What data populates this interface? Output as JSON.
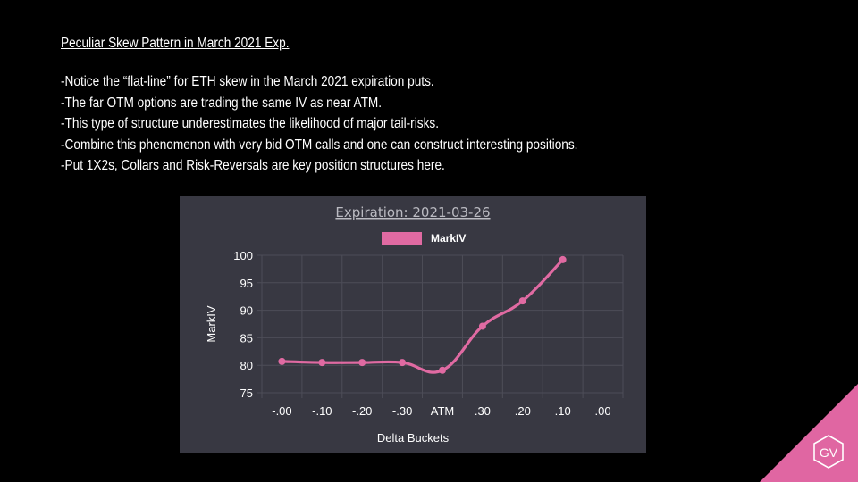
{
  "slide": {
    "title": "Peculiar Skew Pattern in March 2021 Exp.",
    "bullets": [
      "-Notice the “flat-line” for ETH skew in the March 2021 expiration puts.",
      "-The far OTM options are trading the same IV as near ATM.",
      "-This type of structure underestimates the likelihood of major tail-risks.",
      "-Combine this phenomenon with very bid OTM calls and one can construct interesting positions.",
      "-Put 1X2s, Collars and Risk-Reversals are key position structures here."
    ]
  },
  "logo": {
    "text": "GV",
    "color": "#e066a2"
  },
  "chart_data": {
    "type": "line",
    "title": "Expiration: 2021-03-26",
    "xlabel": "Delta Buckets",
    "ylabel": "MarkIV",
    "categories": [
      "-.00",
      "-.10",
      "-.20",
      "-.30",
      "ATM",
      ".30",
      ".20",
      ".10",
      ".00"
    ],
    "series": [
      {
        "name": "MarkIV",
        "values": [
          80.7,
          80.5,
          80.5,
          80.5,
          79.1,
          87.1,
          91.7,
          99.2,
          null
        ]
      }
    ],
    "ylim": [
      75,
      100
    ],
    "yticks": [
      100,
      95,
      90,
      85,
      80,
      75
    ],
    "grid": true,
    "legend": "top-center",
    "colors": {
      "line": "#e06aa2",
      "background": "#383842",
      "grid": "#4d4d58",
      "text": "#ffffff",
      "title": "#bbbbc2"
    }
  }
}
